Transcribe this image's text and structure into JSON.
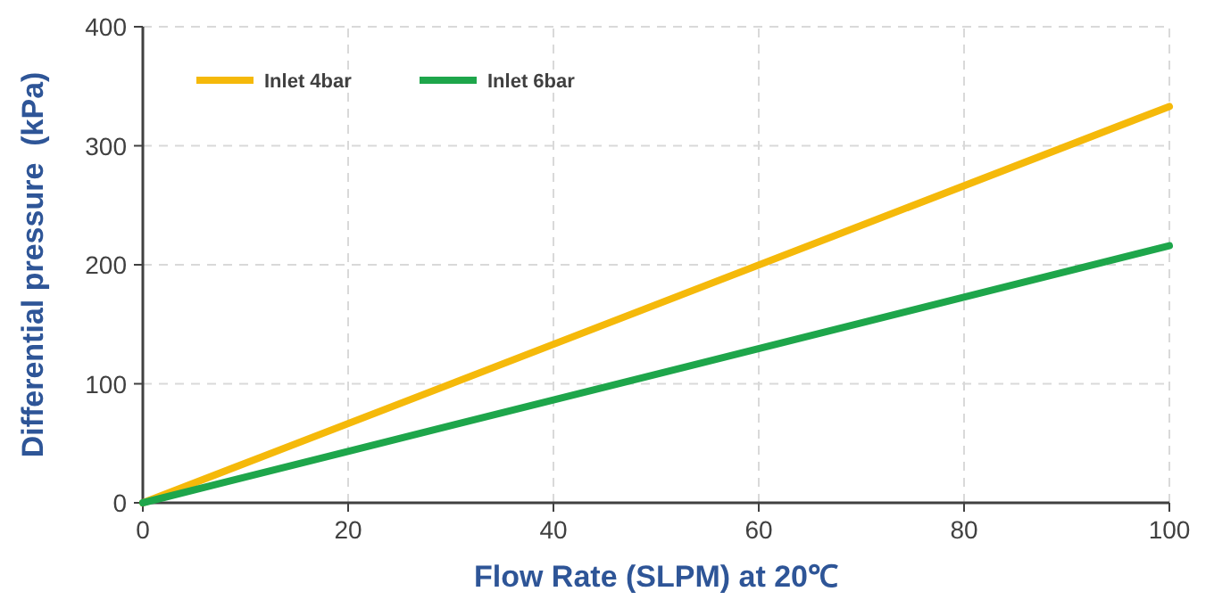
{
  "chart_data": {
    "type": "line",
    "xlabel": "Flow Rate (SLPM) at 20℃",
    "ylabel": "Differential pressure  (kPa)",
    "xlim": [
      0,
      100
    ],
    "ylim": [
      0,
      400
    ],
    "xticks": [
      0,
      20,
      40,
      60,
      80,
      100
    ],
    "yticks": [
      0,
      100,
      200,
      300,
      400
    ],
    "grid": true,
    "legend": "top left",
    "marker": "none",
    "line_style": "solid",
    "x": [
      0,
      100
    ],
    "series": [
      {
        "name": "Inlet 4bar",
        "color": "#f5b90a",
        "values": [
          0,
          333
        ]
      },
      {
        "name": "Inlet 6bar",
        "color": "#1ea64b",
        "values": [
          0,
          216
        ]
      }
    ]
  }
}
